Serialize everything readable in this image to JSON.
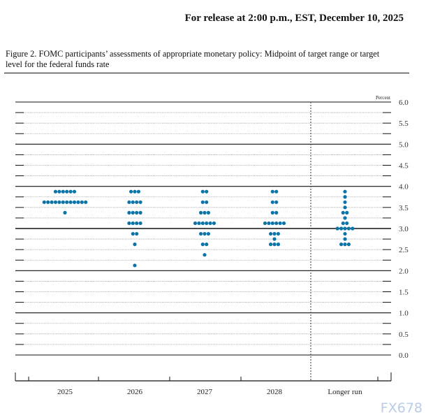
{
  "header": {
    "release": "For release at 2:00 p.m., EST, December 10, 2025"
  },
  "caption": "Figure 2. FOMC participants’ assessments of appropriate monetary policy: Midpoint of target range or target level for the federal funds rate",
  "watermark": "FX678",
  "chart_data": {
    "type": "scatter",
    "ylabel": "Percent",
    "ylim": [
      0,
      6
    ],
    "yticks": [
      "0.0",
      "0.5",
      "1.0",
      "1.5",
      "2.0",
      "2.5",
      "3.0",
      "3.5",
      "4.0",
      "4.5",
      "5.0",
      "5.5",
      "6.0"
    ],
    "grid": {
      "solid_every": 1,
      "dotted_every": 0.25
    },
    "dot_color": "#0a74a8",
    "categories": [
      "2025",
      "2026",
      "2027",
      "2028",
      "Longer run"
    ],
    "dots": [
      {
        "category": "2025",
        "counts": [
          [
            3.875,
            6
          ],
          [
            3.625,
            12
          ],
          [
            3.375,
            1
          ]
        ]
      },
      {
        "category": "2026",
        "counts": [
          [
            3.875,
            3
          ],
          [
            3.625,
            4
          ],
          [
            3.375,
            4
          ],
          [
            3.125,
            4
          ],
          [
            2.875,
            2
          ],
          [
            2.625,
            1
          ],
          [
            2.125,
            1
          ]
        ]
      },
      {
        "category": "2027",
        "counts": [
          [
            3.875,
            2
          ],
          [
            3.625,
            2
          ],
          [
            3.375,
            3
          ],
          [
            3.125,
            6
          ],
          [
            2.875,
            3
          ],
          [
            2.625,
            2
          ],
          [
            2.375,
            1
          ]
        ]
      },
      {
        "category": "2028",
        "counts": [
          [
            3.875,
            2
          ],
          [
            3.625,
            2
          ],
          [
            3.375,
            2
          ],
          [
            3.125,
            6
          ],
          [
            2.875,
            3
          ],
          [
            2.75,
            1
          ],
          [
            2.625,
            3
          ]
        ]
      },
      {
        "category": "Longer run",
        "counts": [
          [
            3.875,
            1
          ],
          [
            3.75,
            1
          ],
          [
            3.625,
            1
          ],
          [
            3.5,
            1
          ],
          [
            3.375,
            2
          ],
          [
            3.25,
            1
          ],
          [
            3.125,
            2
          ],
          [
            3.0,
            5
          ],
          [
            2.875,
            1
          ],
          [
            2.75,
            1
          ],
          [
            2.625,
            3
          ]
        ]
      }
    ]
  }
}
